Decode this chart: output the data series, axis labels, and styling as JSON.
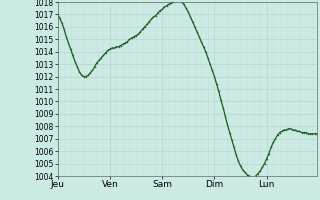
{
  "bg_color": "#cceae4",
  "plot_bg_color": "#cceae4",
  "grid_color_major": "#b8d4ce",
  "grid_color_minor": "#c8e0da",
  "line_color": "#1a5e20",
  "marker_color": "#1a5e20",
  "ylim": [
    1004,
    1018
  ],
  "yticks": [
    1004,
    1005,
    1006,
    1007,
    1008,
    1009,
    1010,
    1011,
    1012,
    1013,
    1014,
    1015,
    1016,
    1017,
    1018
  ],
  "xtick_labels": [
    "Jeu",
    "Ven",
    "Sam",
    "Dim",
    "Lun"
  ],
  "xtick_positions": [
    0,
    24,
    48,
    72,
    96
  ],
  "pressure_data": [
    1017.0,
    1016.7,
    1016.3,
    1015.8,
    1015.2,
    1014.7,
    1014.2,
    1013.7,
    1013.2,
    1012.8,
    1012.4,
    1012.1,
    1012.0,
    1012.0,
    1012.1,
    1012.3,
    1012.5,
    1012.8,
    1013.1,
    1013.3,
    1013.5,
    1013.7,
    1013.9,
    1014.1,
    1014.2,
    1014.3,
    1014.3,
    1014.4,
    1014.4,
    1014.5,
    1014.6,
    1014.7,
    1014.8,
    1015.0,
    1015.1,
    1015.2,
    1015.3,
    1015.4,
    1015.6,
    1015.8,
    1016.0,
    1016.2,
    1016.4,
    1016.6,
    1016.8,
    1016.9,
    1017.1,
    1017.3,
    1017.4,
    1017.6,
    1017.7,
    1017.8,
    1017.9,
    1018.0,
    1018.1,
    1018.2,
    1018.1,
    1018.0,
    1017.8,
    1017.5,
    1017.2,
    1016.8,
    1016.4,
    1016.0,
    1015.6,
    1015.2,
    1014.8,
    1014.4,
    1014.0,
    1013.5,
    1013.0,
    1012.5,
    1012.0,
    1011.4,
    1010.8,
    1010.1,
    1009.5,
    1008.8,
    1008.1,
    1007.5,
    1006.9,
    1006.3,
    1005.7,
    1005.2,
    1004.8,
    1004.5,
    1004.3,
    1004.1,
    1004.0,
    1003.9,
    1003.9,
    1004.0,
    1004.2,
    1004.4,
    1004.7,
    1005.0,
    1005.4,
    1005.8,
    1006.3,
    1006.7,
    1007.0,
    1007.3,
    1007.5,
    1007.6,
    1007.7,
    1007.7,
    1007.8,
    1007.8,
    1007.7,
    1007.7,
    1007.6,
    1007.6,
    1007.5,
    1007.5,
    1007.5,
    1007.4,
    1007.4,
    1007.4,
    1007.4,
    1007.4
  ]
}
